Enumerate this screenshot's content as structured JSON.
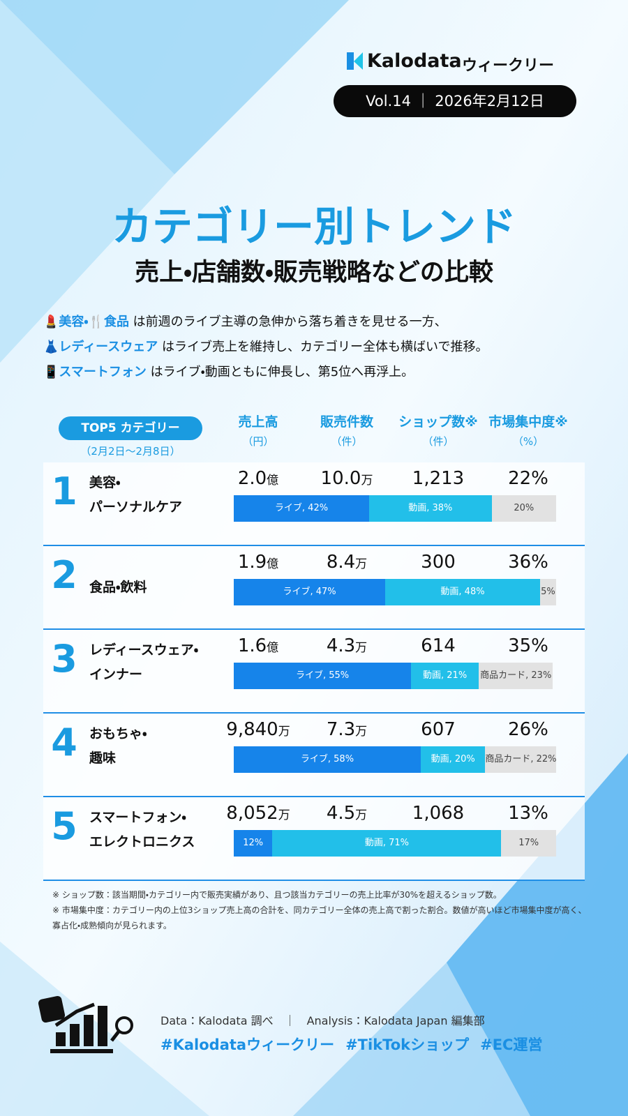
{
  "header": {
    "brand": "Kalodata",
    "brand_suffix": "ウィークリー",
    "issue": "Vol.14 ｜ 2026年2月12日"
  },
  "title": "カテゴリー別トレンド",
  "subtitle": "売上・店舗数・販売戦略などの比較",
  "intro": [
    [
      {
        "text": "💄美容・🍴食品",
        "em": true
      },
      {
        "text": " は前週のライブ主導の急伸から落ち着きを見せる一方、",
        "em": false
      }
    ],
    [
      {
        "text": "👗レディースウェア",
        "em": true
      },
      {
        "text": " はライブ売上を維持し、カテゴリー全体も横ばいで推移。",
        "em": false
      }
    ],
    [
      {
        "text": "📱スマートフォン",
        "em": true
      },
      {
        "text": " はライブ・動画ともに伸長し、第5位へ再浮上。",
        "em": false
      }
    ]
  ],
  "table": {
    "label": "TOP5 カテゴリー",
    "period": "（2月2日～2月8日）",
    "columns": [
      {
        "name": "売上高",
        "unit": "（円）"
      },
      {
        "name": "販売件数",
        "unit": "（件）"
      },
      {
        "name": "ショップ数※",
        "unit": "（件）"
      },
      {
        "name": "市場集中度※",
        "unit": "（%）"
      }
    ],
    "rows": [
      {
        "rank": "1",
        "name": [
          "美容・",
          "パーソナルケア"
        ],
        "sales": {
          "number": "2.0",
          "unit": "億"
        },
        "orders": {
          "number": "10.0",
          "unit": "万"
        },
        "shops": "1,213",
        "concentration": "22%",
        "segments": [
          {
            "text": "ライブ, 42%",
            "value": 42,
            "color": "#1684ea"
          },
          {
            "text": "動画, 38%",
            "value": 38,
            "color": "#22bfe9"
          },
          {
            "text": "20%",
            "value": 20,
            "color": "#e2e2e2"
          }
        ]
      },
      {
        "rank": "2",
        "name": [
          "食品・飲料"
        ],
        "sales": {
          "number": "1.9",
          "unit": "億"
        },
        "orders": {
          "number": "8.4",
          "unit": "万"
        },
        "shops": "300",
        "concentration": "36%",
        "segments": [
          {
            "text": "ライブ, 47%",
            "value": 47,
            "color": "#1684ea"
          },
          {
            "text": "動画, 48%",
            "value": 48,
            "color": "#22bfe9"
          },
          {
            "text": "5%",
            "value": 5,
            "color": "#e2e2e2"
          }
        ]
      },
      {
        "rank": "3",
        "name": [
          "レディースウェア・",
          "インナー"
        ],
        "sales": {
          "number": "1.6",
          "unit": "億"
        },
        "orders": {
          "number": "4.3",
          "unit": "万"
        },
        "shops": "614",
        "concentration": "35%",
        "segments": [
          {
            "text": "ライブ, 55%",
            "value": 55,
            "color": "#1684ea"
          },
          {
            "text": "動画, 21%",
            "value": 21,
            "color": "#22bfe9"
          },
          {
            "text": "商品カード, 23%",
            "value": 23,
            "color": "#e2e2e2"
          }
        ]
      },
      {
        "rank": "4",
        "name": [
          "おもちゃ・",
          "趣味"
        ],
        "sales": {
          "number": "9,840",
          "unit": "万"
        },
        "orders": {
          "number": "7.3",
          "unit": "万"
        },
        "shops": "607",
        "concentration": "26%",
        "segments": [
          {
            "text": "ライブ, 58%",
            "value": 58,
            "color": "#1684ea"
          },
          {
            "text": "動画, 20%",
            "value": 20,
            "color": "#22bfe9"
          },
          {
            "text": "商品カード, 22%",
            "value": 22,
            "color": "#e2e2e2"
          }
        ]
      },
      {
        "rank": "5",
        "name": [
          "スマートフォン・",
          "エレクトロニクス"
        ],
        "sales": {
          "number": "8,052",
          "unit": "万"
        },
        "orders": {
          "number": "4.5",
          "unit": "万"
        },
        "shops": "1,068",
        "concentration": "13%",
        "segments": [
          {
            "text": "12%",
            "value": 12,
            "color": "#1684ea"
          },
          {
            "text": "動画, 71%",
            "value": 71,
            "color": "#22bfe9"
          },
          {
            "text": "17%",
            "value": 17,
            "color": "#e2e2e2"
          }
        ]
      }
    ]
  },
  "notes": [
    "※ ショップ数：該当期間・カテゴリー内で販売実績があり、且つ該当カテゴリーの売上比率が30%を超えるショップ数。",
    "※ 市場集中度：カテゴリー内の上位3ショップ売上高の合計を、同カテゴリー全体の売上高で割った割合。数値が高いほど市場集中度が高く、",
    "寡占化・成熟傾向が見られます。"
  ],
  "footer": {
    "credit": "Data：Kalodata 調べ　｜　Analysis：Kalodata Japan 編集部",
    "hashtags": [
      "#Kalodataウィークリー",
      "#TikTokショップ",
      "#EC運営"
    ]
  }
}
